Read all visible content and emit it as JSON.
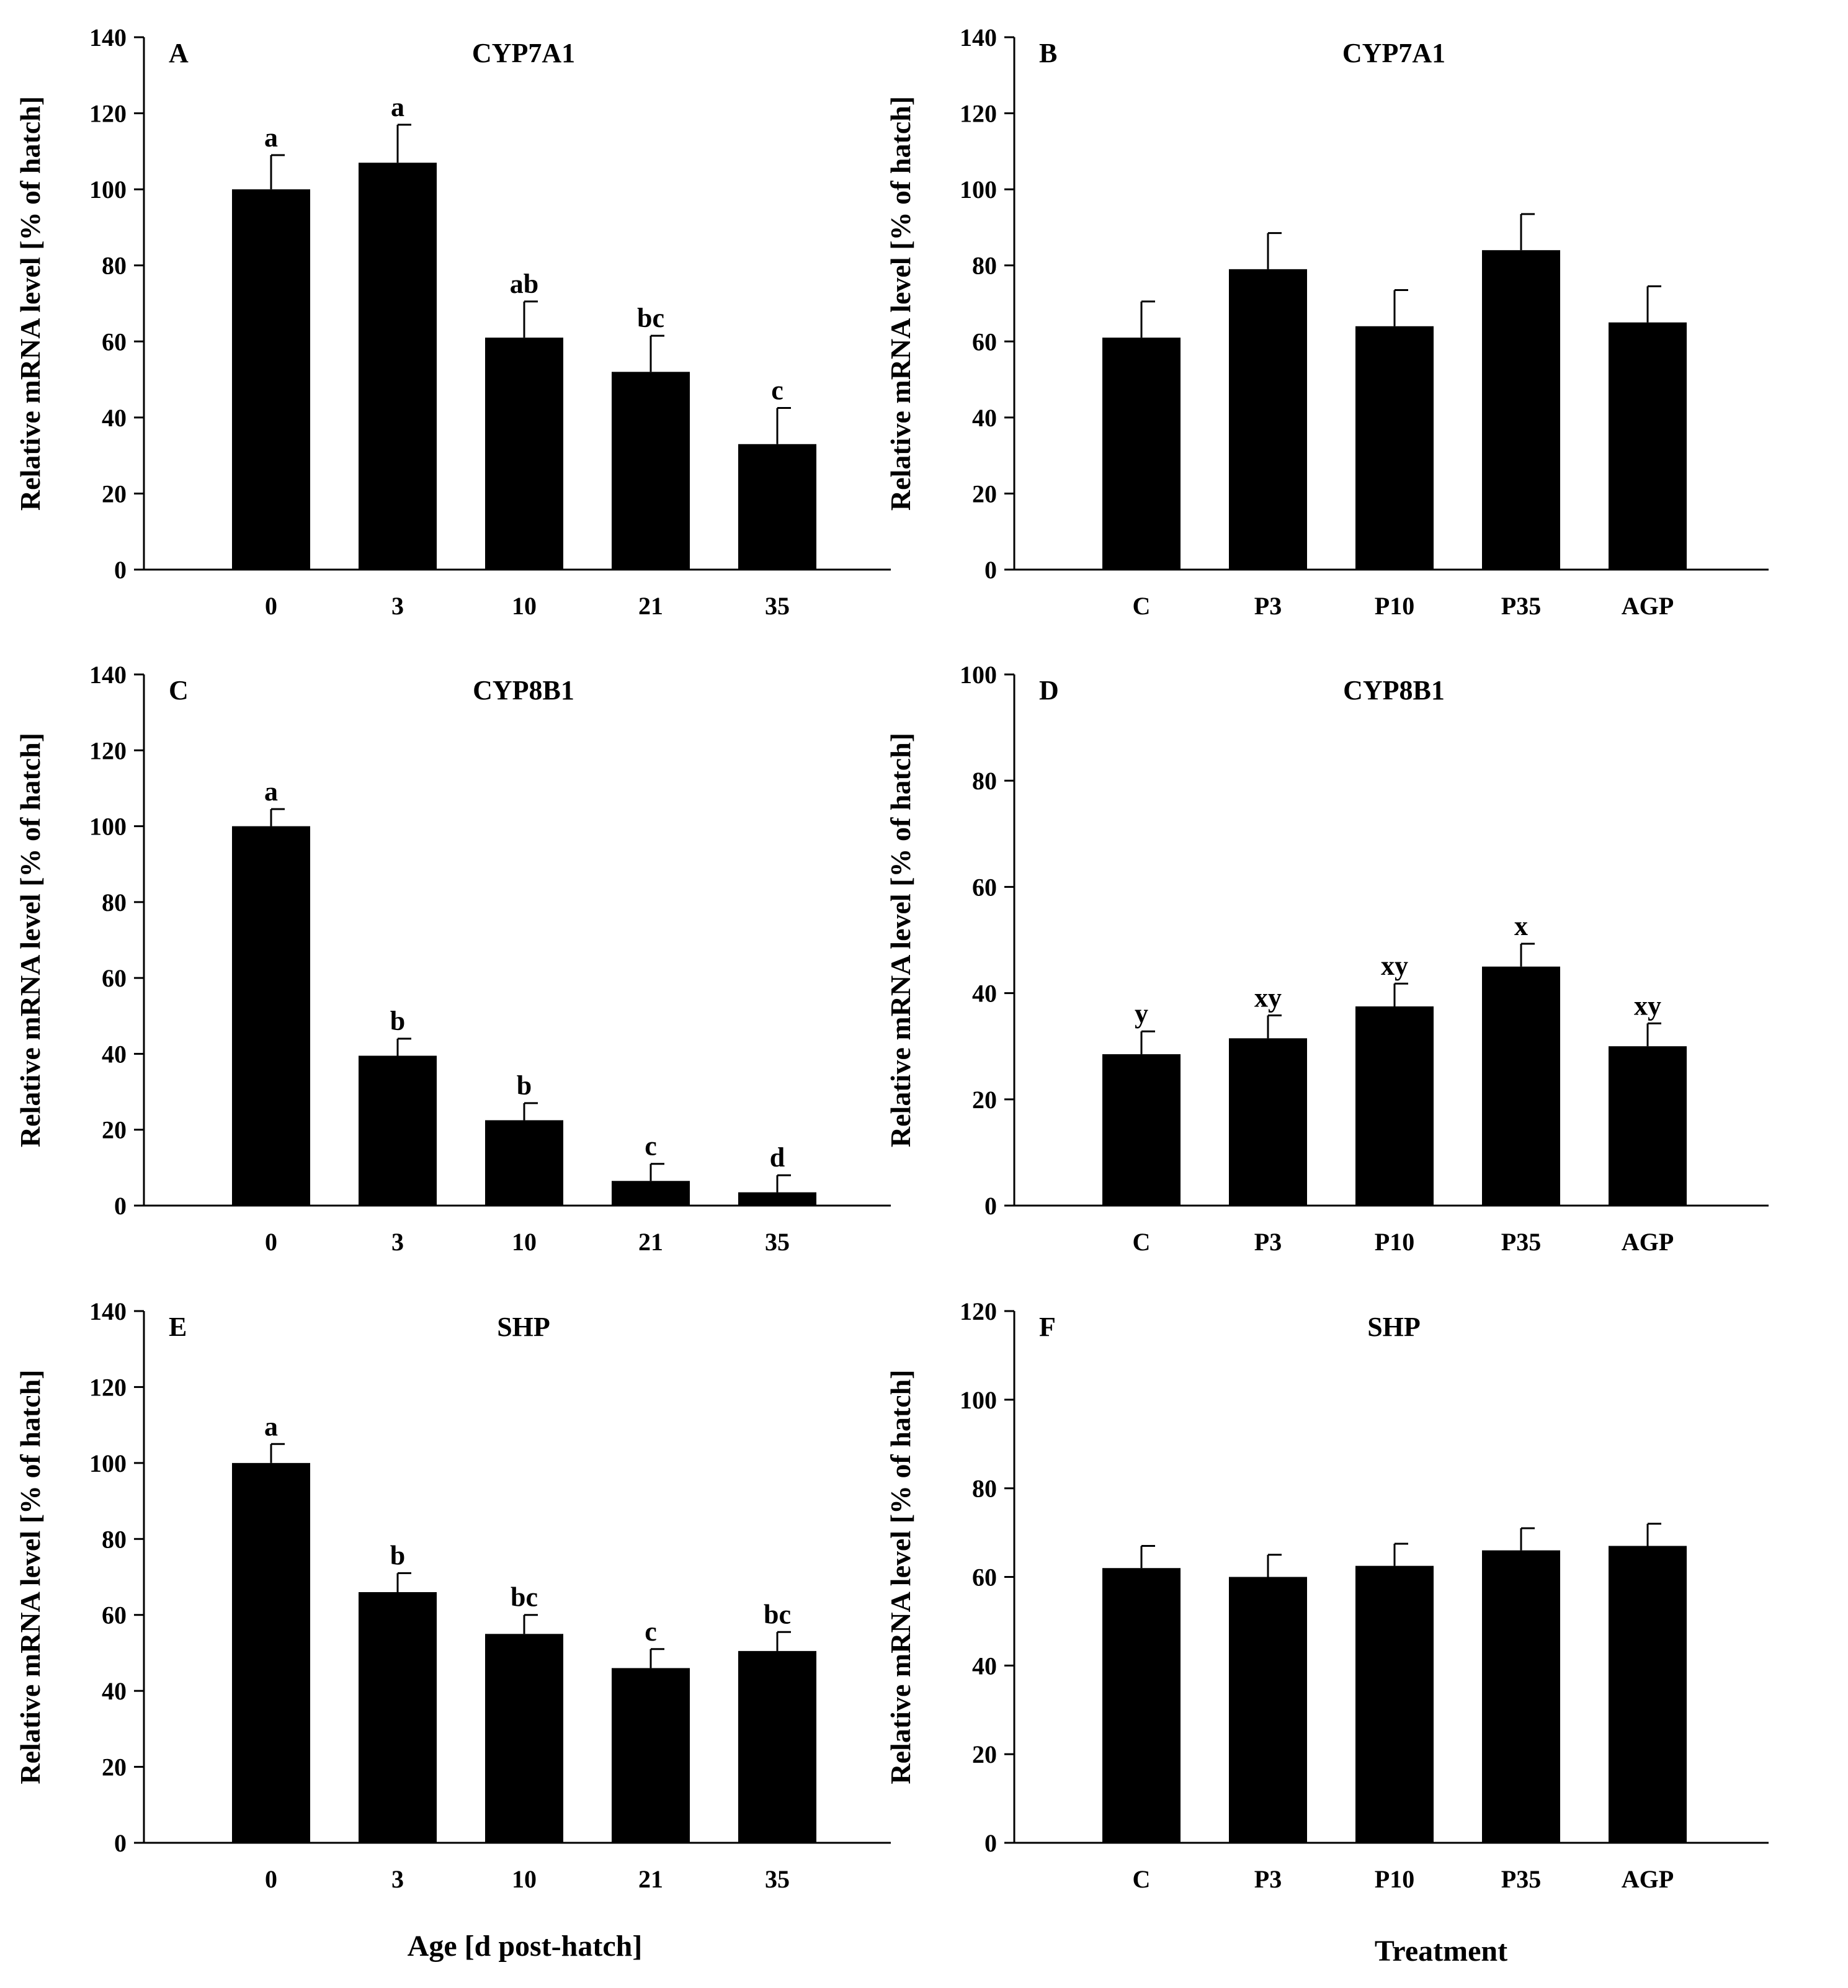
{
  "figure": {
    "bottom_labels": {
      "age": "Age [d post-hatch]",
      "treatment": "Treatment"
    }
  },
  "chart_data": [
    {
      "panel": "A",
      "type": "bar",
      "title": "CYP7A1",
      "ylabel": "Relative mRNA level [% of hatch]",
      "xlabel": "Age [d post-hatch]",
      "categories": [
        "0",
        "3",
        "10",
        "21",
        "35"
      ],
      "values": [
        100,
        107,
        61,
        52,
        33
      ],
      "errors": [
        9,
        10,
        9.5,
        9.5,
        9.5
      ],
      "significance": [
        "a",
        "a",
        "ab",
        "bc",
        "c"
      ],
      "ylim": [
        0,
        140
      ],
      "yticks": [
        0,
        20,
        40,
        60,
        80,
        100,
        120,
        140
      ]
    },
    {
      "panel": "B",
      "type": "bar",
      "title": "CYP7A1",
      "ylabel": "Relative mRNA level [% of hatch]",
      "xlabel": "Treatment",
      "categories": [
        "C",
        "P3",
        "P10",
        "P35",
        "AGP"
      ],
      "values": [
        61,
        79,
        64,
        84,
        65
      ],
      "errors": [
        9.5,
        9.5,
        9.5,
        9.5,
        9.5
      ],
      "significance": [
        "",
        "",
        "",
        "",
        ""
      ],
      "ylim": [
        0,
        140
      ],
      "yticks": [
        0,
        20,
        40,
        60,
        80,
        100,
        120,
        140
      ]
    },
    {
      "panel": "C",
      "type": "bar",
      "title": "CYP8B1",
      "ylabel": "Relative mRNA level [% of hatch]",
      "xlabel": "Age [d post-hatch]",
      "categories": [
        "0",
        "3",
        "10",
        "21",
        "35"
      ],
      "values": [
        100,
        39.5,
        22.5,
        6.5,
        3.5
      ],
      "errors": [
        4.5,
        4.5,
        4.5,
        4.5,
        4.5
      ],
      "significance": [
        "a",
        "b",
        "b",
        "c",
        "d"
      ],
      "ylim": [
        0,
        140
      ],
      "yticks": [
        0,
        20,
        40,
        60,
        80,
        100,
        120,
        140
      ]
    },
    {
      "panel": "D",
      "type": "bar",
      "title": "CYP8B1",
      "ylabel": "Relative mRNA level [% of hatch]",
      "xlabel": "Treatment",
      "categories": [
        "C",
        "P3",
        "P10",
        "P35",
        "AGP"
      ],
      "values": [
        28.5,
        31.5,
        37.5,
        45,
        30
      ],
      "errors": [
        4.3,
        4.3,
        4.3,
        4.3,
        4.3
      ],
      "significance": [
        "y",
        "xy",
        "xy",
        "x",
        "xy"
      ],
      "ylim": [
        0,
        100
      ],
      "yticks": [
        0,
        20,
        40,
        60,
        80,
        100
      ]
    },
    {
      "panel": "E",
      "type": "bar",
      "title": "SHP",
      "ylabel": "Relative mRNA level [% of hatch]",
      "xlabel": "Age [d post-hatch]",
      "categories": [
        "0",
        "3",
        "10",
        "21",
        "35"
      ],
      "values": [
        100,
        66,
        55,
        46,
        50.5
      ],
      "errors": [
        5,
        5,
        5,
        5,
        5
      ],
      "significance": [
        "a",
        "b",
        "bc",
        "c",
        "bc"
      ],
      "ylim": [
        0,
        140
      ],
      "yticks": [
        0,
        20,
        40,
        60,
        80,
        100,
        120,
        140
      ]
    },
    {
      "panel": "F",
      "type": "bar",
      "title": "SHP",
      "ylabel": "Relative mRNA level [% of hatch]",
      "xlabel": "Treatment",
      "categories": [
        "C",
        "P3",
        "P10",
        "P35",
        "AGP"
      ],
      "values": [
        62,
        60,
        62.5,
        66,
        67
      ],
      "errors": [
        5,
        5,
        5,
        5,
        5
      ],
      "significance": [
        "",
        "",
        "",
        "",
        ""
      ],
      "ylim": [
        0,
        120
      ],
      "yticks": [
        0,
        20,
        40,
        60,
        80,
        100,
        120
      ]
    }
  ]
}
